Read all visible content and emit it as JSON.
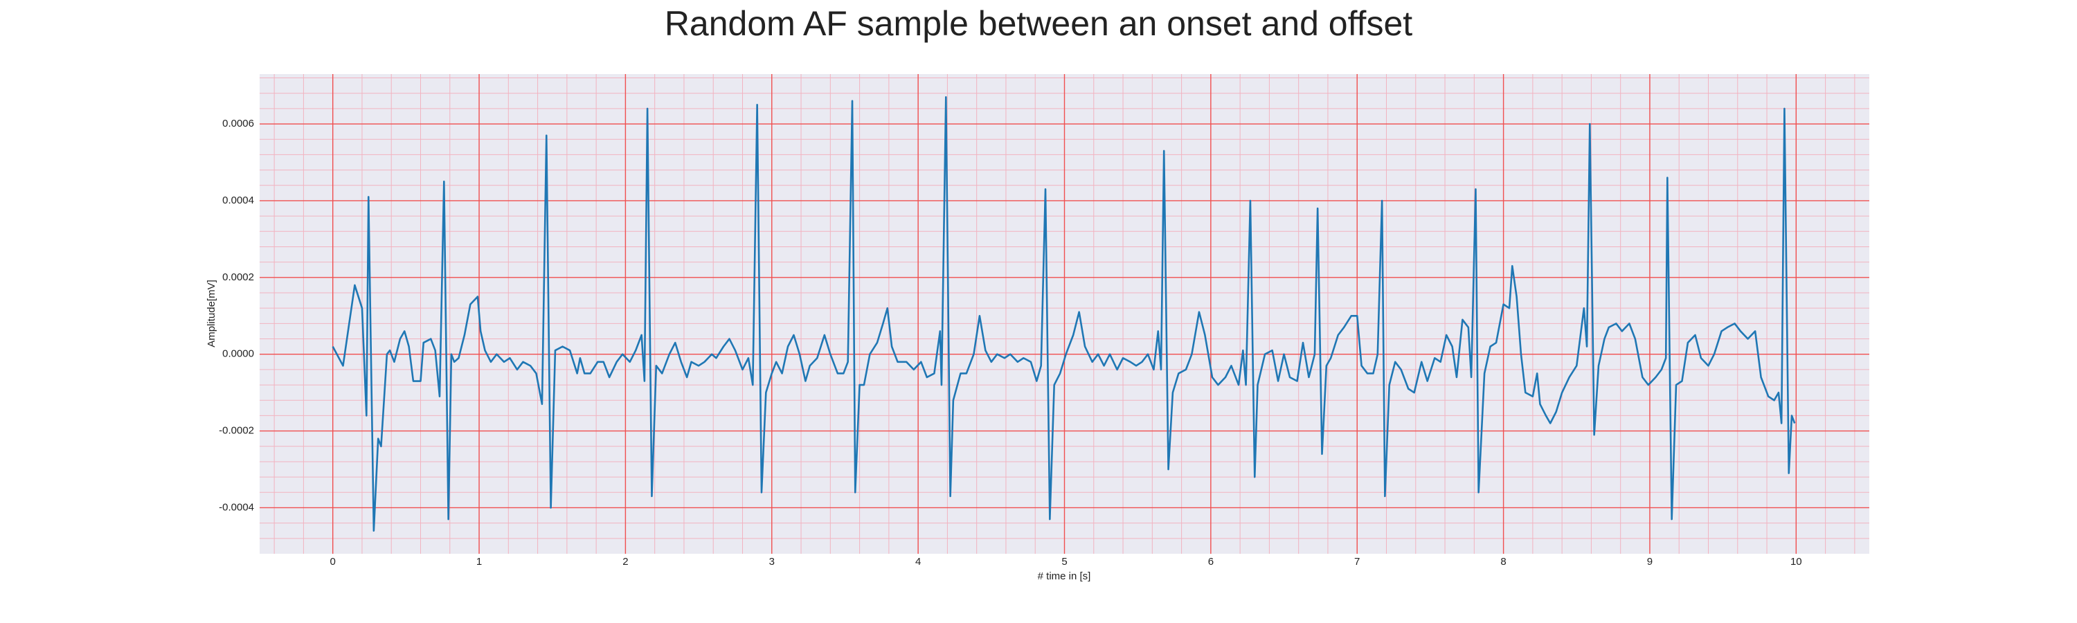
{
  "chart_data": {
    "type": "line",
    "title": "Random AF sample between an onset and offset",
    "xlabel": "# time in [s]",
    "ylabel": "Amplitude[mV]",
    "color": "#1f77b4",
    "grid": true,
    "xlim": [
      -0.5,
      10.5
    ],
    "xticks": [
      0,
      1,
      2,
      3,
      4,
      5,
      6,
      7,
      8,
      9,
      10
    ],
    "ylim": [
      -0.00052,
      0.00073
    ],
    "yticks": [
      -0.0004,
      -0.0002,
      {
        "value": 0,
        "label": "0.0000"
      },
      0.0002,
      0.0004,
      0.0006
    ],
    "x": [
      0,
      0.07,
      0.15,
      0.2,
      0.23,
      0.244,
      0.28,
      0.31,
      0.33,
      0.37,
      0.39,
      0.42,
      0.46,
      0.49,
      0.52,
      0.55,
      0.6,
      0.62,
      0.67,
      0.7,
      0.73,
      0.76,
      0.79,
      0.81,
      0.83,
      0.86,
      0.9,
      0.94,
      0.99,
      1.01,
      1.04,
      1.08,
      1.12,
      1.17,
      1.21,
      1.26,
      1.3,
      1.35,
      1.39,
      1.43,
      1.46,
      1.49,
      1.52,
      1.57,
      1.62,
      1.67,
      1.69,
      1.72,
      1.76,
      1.81,
      1.85,
      1.89,
      1.94,
      1.98,
      2.03,
      2.07,
      2.11,
      2.13,
      2.15,
      2.18,
      2.21,
      2.25,
      2.3,
      2.34,
      2.38,
      2.42,
      2.45,
      2.5,
      2.54,
      2.59,
      2.62,
      2.67,
      2.71,
      2.75,
      2.8,
      2.84,
      2.87,
      2.9,
      2.93,
      2.96,
      3.0,
      3.03,
      3.07,
      3.11,
      3.15,
      3.19,
      3.23,
      3.26,
      3.31,
      3.36,
      3.4,
      3.45,
      3.49,
      3.52,
      3.55,
      3.57,
      3.6,
      3.63,
      3.67,
      3.72,
      3.76,
      3.79,
      3.82,
      3.86,
      3.92,
      3.97,
      4.02,
      4.06,
      4.11,
      4.15,
      4.16,
      4.19,
      4.22,
      4.24,
      4.29,
      4.33,
      4.38,
      4.42,
      4.46,
      4.5,
      4.54,
      4.59,
      4.63,
      4.68,
      4.72,
      4.77,
      4.81,
      4.84,
      4.87,
      4.9,
      4.93,
      4.97,
      5.01,
      5.06,
      5.1,
      5.14,
      5.19,
      5.23,
      5.27,
      5.31,
      5.36,
      5.4,
      5.45,
      5.49,
      5.53,
      5.57,
      5.61,
      5.64,
      5.66,
      5.68,
      5.71,
      5.74,
      5.78,
      5.83,
      5.87,
      5.92,
      5.96,
      6.01,
      6.05,
      6.1,
      6.14,
      6.19,
      6.22,
      6.24,
      6.27,
      6.3,
      6.32,
      6.37,
      6.42,
      6.46,
      6.5,
      6.54,
      6.59,
      6.63,
      6.67,
      6.71,
      6.73,
      6.76,
      6.79,
      6.82,
      6.87,
      6.91,
      6.96,
      7.0,
      7.03,
      7.07,
      7.11,
      7.14,
      7.17,
      7.19,
      7.22,
      7.26,
      7.3,
      7.35,
      7.39,
      7.44,
      7.48,
      7.53,
      7.57,
      7.61,
      7.65,
      7.68,
      7.72,
      7.76,
      7.78,
      7.81,
      7.83,
      7.87,
      7.91,
      7.95,
      8.0,
      8.04,
      8.06,
      8.09,
      8.12,
      8.15,
      8.2,
      8.23,
      8.25,
      8.29,
      8.32,
      8.36,
      8.4,
      8.45,
      8.5,
      8.52,
      8.55,
      8.57,
      8.59,
      8.62,
      8.65,
      8.69,
      8.72,
      8.77,
      8.81,
      8.86,
      8.9,
      8.95,
      8.99,
      9.04,
      9.08,
      9.11,
      9.12,
      9.15,
      9.18,
      9.22,
      9.26,
      9.31,
      9.35,
      9.4,
      9.44,
      9.49,
      9.53,
      9.58,
      9.62,
      9.67,
      9.72,
      9.76,
      9.81,
      9.85,
      9.88,
      9.9,
      9.92,
      9.95,
      9.97,
      9.99
    ],
    "values": [
      2e-05,
      -3e-05,
      0.00018,
      0.00012,
      -0.00016,
      0.00041,
      -0.00046,
      -0.00022,
      -0.00024,
      0,
      1e-05,
      -2e-05,
      4e-05,
      6e-05,
      2e-05,
      -7e-05,
      -7e-05,
      3e-05,
      4e-05,
      1e-05,
      -0.00011,
      0.00045,
      -0.00043,
      0,
      -2e-05,
      -1e-05,
      5e-05,
      0.00013,
      0.00015,
      6e-05,
      1e-05,
      -2e-05,
      0,
      -2e-05,
      -1e-05,
      -4e-05,
      -2e-05,
      -3e-05,
      -5e-05,
      -0.00013,
      0.00057,
      -0.0004,
      1e-05,
      2e-05,
      1e-05,
      -5e-05,
      -1e-05,
      -5e-05,
      -5e-05,
      -2e-05,
      -2e-05,
      -6e-05,
      -2e-05,
      0,
      -2e-05,
      1e-05,
      5e-05,
      -7e-05,
      0.00064,
      -0.00037,
      -3e-05,
      -5e-05,
      0,
      3e-05,
      -2e-05,
      -6e-05,
      -2e-05,
      -3e-05,
      -2e-05,
      0,
      -1e-05,
      2e-05,
      4e-05,
      1e-05,
      -4e-05,
      -1e-05,
      -8e-05,
      0.00065,
      -0.00036,
      -0.0001,
      -5e-05,
      -2e-05,
      -5e-05,
      2e-05,
      5e-05,
      0,
      -7e-05,
      -3e-05,
      -1e-05,
      5e-05,
      0,
      -5e-05,
      -5e-05,
      -2e-05,
      0.00066,
      -0.00036,
      -8e-05,
      -8e-05,
      0,
      3e-05,
      8e-05,
      0.00012,
      2e-05,
      -2e-05,
      -2e-05,
      -4e-05,
      -2e-05,
      -6e-05,
      -5e-05,
      6e-05,
      -8e-05,
      0.00067,
      -0.00037,
      -0.00012,
      -5e-05,
      -5e-05,
      0,
      0.0001,
      1e-05,
      -2e-05,
      0,
      -1e-05,
      0,
      -2e-05,
      -1e-05,
      -2e-05,
      -7e-05,
      -3e-05,
      0.00043,
      -0.00043,
      -8e-05,
      -5e-05,
      0,
      5e-05,
      0.00011,
      2e-05,
      -2e-05,
      0,
      -3e-05,
      0,
      -4e-05,
      -1e-05,
      -2e-05,
      -3e-05,
      -2e-05,
      0,
      -4e-05,
      6e-05,
      -4e-05,
      0.00053,
      -0.0003,
      -0.0001,
      -5e-05,
      -4e-05,
      0,
      0.00011,
      5e-05,
      -6e-05,
      -8e-05,
      -6e-05,
      -3e-05,
      -8e-05,
      1e-05,
      -8e-05,
      0.0004,
      -0.00032,
      -8e-05,
      0,
      1e-05,
      -7e-05,
      0,
      -6e-05,
      -7e-05,
      3e-05,
      -6e-05,
      0,
      0.00038,
      -0.00026,
      -3e-05,
      -1e-05,
      5e-05,
      7e-05,
      0.0001,
      0.0001,
      -3e-05,
      -5e-05,
      -5e-05,
      0,
      0.0004,
      -0.00037,
      -8e-05,
      -2e-05,
      -4e-05,
      -9e-05,
      -0.0001,
      -2e-05,
      -7e-05,
      -1e-05,
      -2e-05,
      5e-05,
      2e-05,
      -6e-05,
      9e-05,
      7e-05,
      -6e-05,
      0.00043,
      -0.00036,
      -5e-05,
      2e-05,
      3e-05,
      0.00013,
      0.00012,
      0.00023,
      0.00015,
      0,
      -0.0001,
      -0.00011,
      -5e-05,
      -0.00013,
      -0.00016,
      -0.00018,
      -0.00015,
      -0.0001,
      -6e-05,
      -3e-05,
      3e-05,
      0.00012,
      2e-05,
      0.0006,
      -0.00021,
      -3e-05,
      4e-05,
      7e-05,
      8e-05,
      6e-05,
      8e-05,
      4e-05,
      -6e-05,
      -8e-05,
      -6e-05,
      -4e-05,
      -1e-05,
      0.00046,
      -0.00043,
      -8e-05,
      -7e-05,
      3e-05,
      5e-05,
      -1e-05,
      -3e-05,
      0,
      6e-05,
      7e-05,
      8e-05,
      6e-05,
      4e-05,
      6e-05,
      -6e-05,
      -0.00011,
      -0.00012,
      -0.0001,
      -0.00018,
      0.00064,
      -0.00031,
      -0.00016,
      -0.00018
    ]
  }
}
